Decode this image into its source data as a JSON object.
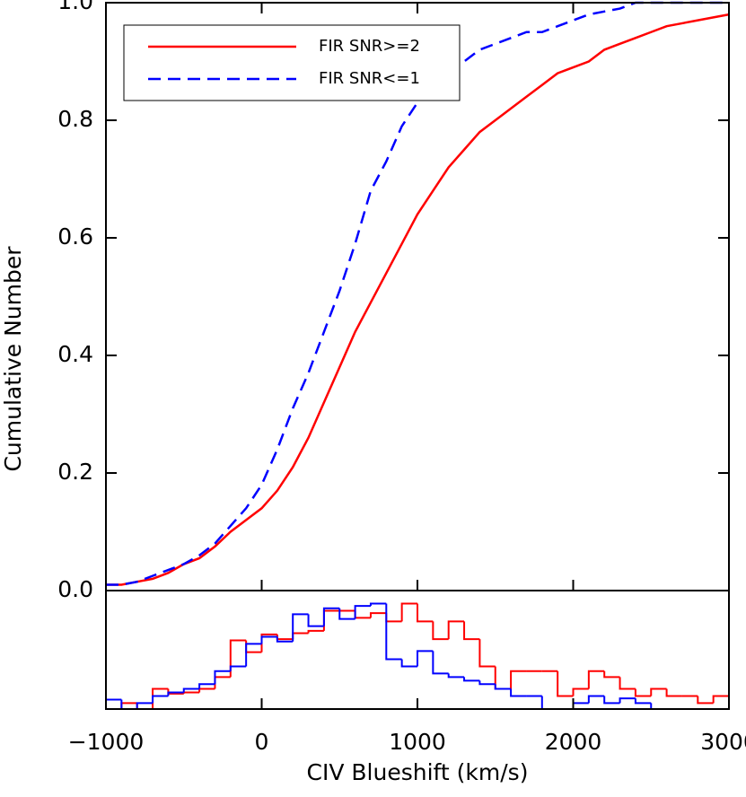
{
  "chart_data": [
    {
      "type": "line",
      "ylabel": "Cumulative Number",
      "x": [
        -1000,
        -900,
        -800,
        -700,
        -600,
        -500,
        -400,
        -300,
        -200,
        -100,
        0,
        100,
        200,
        300,
        400,
        500,
        600,
        700,
        800,
        900,
        1000,
        1100,
        1200,
        1300,
        1400,
        1500,
        1600,
        1700,
        1800,
        1900,
        2000,
        2100,
        2200,
        2300,
        2400,
        2500,
        2600,
        2700,
        2800,
        2900,
        3000
      ],
      "series": [
        {
          "name": "FIR SNR>=2",
          "color": "#ff0000",
          "dash": false,
          "values": [
            0.01,
            0.01,
            0.015,
            0.02,
            0.03,
            0.045,
            0.055,
            0.075,
            0.1,
            0.12,
            0.14,
            0.17,
            0.21,
            0.26,
            0.32,
            0.38,
            0.44,
            0.49,
            0.54,
            0.59,
            0.64,
            0.68,
            0.72,
            0.75,
            0.78,
            0.8,
            0.82,
            0.84,
            0.86,
            0.88,
            0.89,
            0.9,
            0.92,
            0.93,
            0.94,
            0.95,
            0.96,
            0.965,
            0.97,
            0.975,
            0.98
          ]
        },
        {
          "name": "FIR SNR<=1",
          "color": "#0000ff",
          "dash": true,
          "values": [
            0.01,
            0.01,
            0.015,
            0.025,
            0.035,
            0.045,
            0.06,
            0.08,
            0.11,
            0.14,
            0.18,
            0.24,
            0.31,
            0.37,
            0.44,
            0.51,
            0.59,
            0.68,
            0.73,
            0.79,
            0.83,
            0.86,
            0.88,
            0.9,
            0.92,
            0.93,
            0.94,
            0.95,
            0.95,
            0.96,
            0.97,
            0.98,
            0.985,
            0.99,
            1.0,
            1.0,
            1.0,
            1.0,
            1.0,
            1.0,
            1.0
          ]
        }
      ],
      "xlim": [
        -1000,
        3000
      ],
      "ylim": [
        0,
        1
      ],
      "yticks": [
        {
          "value": 0,
          "label": "0.0"
        },
        0.2,
        0.4,
        0.6,
        0.8,
        {
          "value": 1,
          "label": "1.0"
        }
      ],
      "legend": "top-left"
    },
    {
      "type": "histogram",
      "xlabel": "CIV Blueshift (km/s)",
      "bins": [
        -1000,
        -900,
        -800,
        -700,
        -600,
        -500,
        -400,
        -300,
        -200,
        -100,
        0,
        100,
        200,
        300,
        400,
        500,
        600,
        700,
        800,
        900,
        1000,
        1100,
        1200,
        1300,
        1400,
        1500,
        1600,
        1700,
        1800,
        1900,
        2000,
        2100,
        2200,
        2300,
        2400,
        2500,
        2600,
        2700,
        2800,
        2900,
        3000
      ],
      "series": [
        {
          "name": "FIR SNR>=2",
          "color": "#ff0000",
          "values": [
            0,
            0.05,
            0,
            0.17,
            0.13,
            0.14,
            0.17,
            0.27,
            0.58,
            0.48,
            0.63,
            0.59,
            0.64,
            0.66,
            0.83,
            0.83,
            0.77,
            0.81,
            0.74,
            0.89,
            0.74,
            0.59,
            0.74,
            0.59,
            0.36,
            0.17,
            0.32,
            0.32,
            0.32,
            0.11,
            0.17,
            0.32,
            0.27,
            0.17,
            0.11,
            0.17,
            0.11,
            0.11,
            0.05,
            0.11
          ]
        },
        {
          "name": "FIR SNR<=1",
          "color": "#0000ff",
          "values": [
            0.08,
            0,
            0.05,
            0.11,
            0.14,
            0.17,
            0.21,
            0.32,
            0.36,
            0.55,
            0.61,
            0.57,
            0.8,
            0.7,
            0.85,
            0.76,
            0.87,
            0.89,
            0.42,
            0.36,
            0.49,
            0.3,
            0.27,
            0.24,
            0.21,
            0.17,
            0.11,
            0.11,
            0,
            0,
            0.05,
            0.11,
            0.05,
            0.09,
            0.05,
            0,
            0,
            0,
            0,
            0
          ]
        }
      ],
      "xlim": [
        -1000,
        3000
      ],
      "ylim": [
        0,
        1
      ],
      "xticks": [
        {
          "value": -1000,
          "label": "−1000"
        },
        0,
        1000,
        2000,
        3000
      ]
    }
  ]
}
